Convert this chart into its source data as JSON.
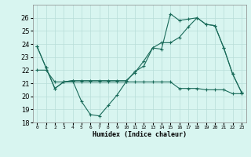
{
  "xlabel": "Humidex (Indice chaleur)",
  "x": [
    0,
    1,
    2,
    3,
    4,
    5,
    6,
    7,
    8,
    9,
    10,
    11,
    12,
    13,
    14,
    15,
    16,
    17,
    18,
    19,
    20,
    21,
    22,
    23
  ],
  "line1": [
    23.8,
    22.2,
    20.6,
    21.1,
    21.2,
    19.6,
    18.6,
    18.5,
    19.3,
    20.1,
    21.1,
    21.9,
    22.3,
    23.7,
    23.6,
    26.3,
    25.8,
    25.9,
    26.0,
    25.5,
    25.4,
    23.7,
    21.7,
    20.3
  ],
  "line2": [
    23.8,
    22.2,
    20.6,
    21.1,
    21.2,
    21.2,
    21.2,
    21.2,
    21.2,
    21.2,
    21.2,
    21.8,
    22.7,
    23.7,
    24.1,
    24.1,
    24.5,
    25.3,
    26.0,
    25.5,
    25.4,
    23.7,
    21.7,
    20.3
  ],
  "line3": [
    22.0,
    22.0,
    21.1,
    21.1,
    21.1,
    21.1,
    21.1,
    21.1,
    21.1,
    21.1,
    21.1,
    21.1,
    21.1,
    21.1,
    21.1,
    21.1,
    20.6,
    20.6,
    20.6,
    20.5,
    20.5,
    20.5,
    20.2,
    20.2
  ],
  "ylim": [
    18,
    27
  ],
  "yticks": [
    18,
    19,
    20,
    21,
    22,
    23,
    24,
    25,
    26
  ],
  "color": "#1a6b5a",
  "bg_color": "#d8f5f0",
  "grid_color": "#b8ddd8"
}
